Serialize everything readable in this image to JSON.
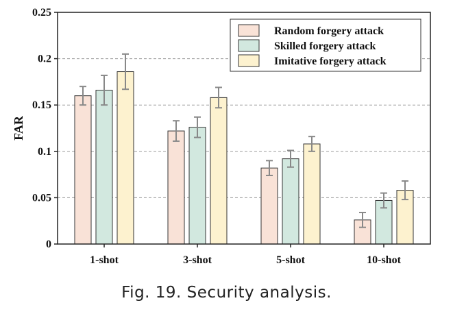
{
  "chart_data": {
    "type": "bar",
    "categories": [
      "1-shot",
      "3-shot",
      "5-shot",
      "10-shot"
    ],
    "series": [
      {
        "name": "Random forgery attack",
        "color": "#f9e2d7",
        "values": [
          0.16,
          0.122,
          0.082,
          0.026
        ],
        "errors": [
          0.01,
          0.011,
          0.008,
          0.008
        ]
      },
      {
        "name": "Skilled forgery attack",
        "color": "#d2e8df",
        "values": [
          0.166,
          0.126,
          0.092,
          0.047
        ],
        "errors": [
          0.016,
          0.011,
          0.009,
          0.008
        ]
      },
      {
        "name": "Imitative forgery attack",
        "color": "#fdf2cf",
        "values": [
          0.186,
          0.158,
          0.108,
          0.058
        ],
        "errors": [
          0.019,
          0.011,
          0.008,
          0.01
        ]
      }
    ],
    "ylabel": "FAR",
    "xlabel": "",
    "ylim": [
      0,
      0.25
    ],
    "yticks": [
      0,
      0.05,
      0.1,
      0.15,
      0.2,
      0.25
    ],
    "ytick_labels": [
      "0",
      "0.05",
      "0.1",
      "0.15",
      "0.2",
      "0.25"
    ],
    "grid": "horizontal dashed",
    "legend_position": "top-right"
  },
  "caption": "Fig. 19.  Security analysis."
}
